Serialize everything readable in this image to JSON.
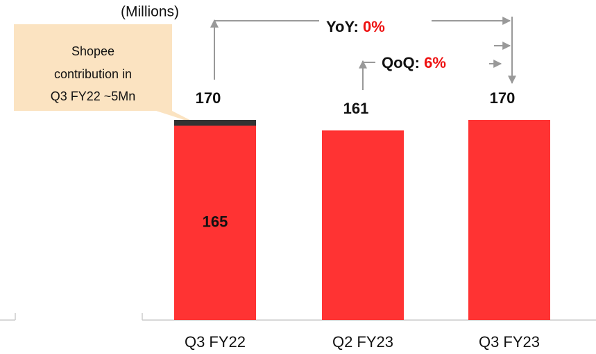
{
  "chart_data": {
    "type": "stacked_bar",
    "unit_label": "(Millions)",
    "categories": [
      "Q3 FY22",
      "Q2 FY23",
      "Q3 FY23"
    ],
    "series": [
      {
        "color": "#ff3333",
        "values": [
          165,
          161,
          170
        ]
      },
      {
        "color": "#333333",
        "values": [
          5,
          null,
          null
        ]
      }
    ],
    "totals": [
      170,
      161,
      170
    ],
    "inside_label_for": [
      0
    ],
    "callout": [
      "Shopee",
      "contribution in",
      "Q3 FY22 ~5Mn"
    ],
    "yoy": {
      "label": "YoY:",
      "value": "0%"
    },
    "qoq": {
      "label": "QoQ:",
      "value": "6%"
    }
  }
}
